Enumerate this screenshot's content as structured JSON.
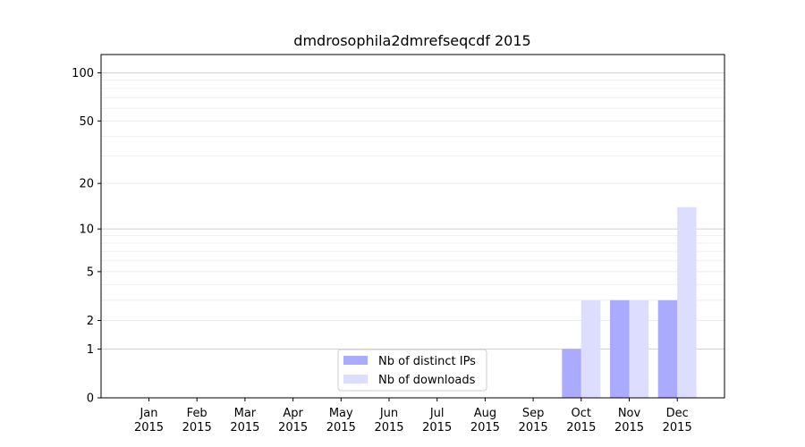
{
  "chart_data": {
    "type": "bar",
    "title": "dmdrosophila2dmrefseqcdf 2015",
    "xlabel": "",
    "ylabel": "",
    "y_scale": "symlog",
    "ylim": [
      0,
      130
    ],
    "y_ticks": [
      0,
      1,
      2,
      5,
      10,
      20,
      50,
      100
    ],
    "categories": [
      "Jan\n2015",
      "Feb\n2015",
      "Mar\n2015",
      "Apr\n2015",
      "May\n2015",
      "Jun\n2015",
      "Jul\n2015",
      "Aug\n2015",
      "Sep\n2015",
      "Oct\n2015",
      "Nov\n2015",
      "Dec\n2015"
    ],
    "series": [
      {
        "name": "Nb of distinct IPs",
        "color": "#aaaaff",
        "values": [
          0,
          0,
          0,
          0,
          0,
          0,
          0,
          0,
          0,
          1,
          3,
          3
        ]
      },
      {
        "name": "Nb of downloads",
        "color": "#ddddff",
        "values": [
          0,
          0,
          0,
          0,
          0,
          0,
          0,
          0,
          0,
          3,
          3,
          14
        ]
      }
    ],
    "legend_position": "lower-center",
    "grid": "y"
  }
}
